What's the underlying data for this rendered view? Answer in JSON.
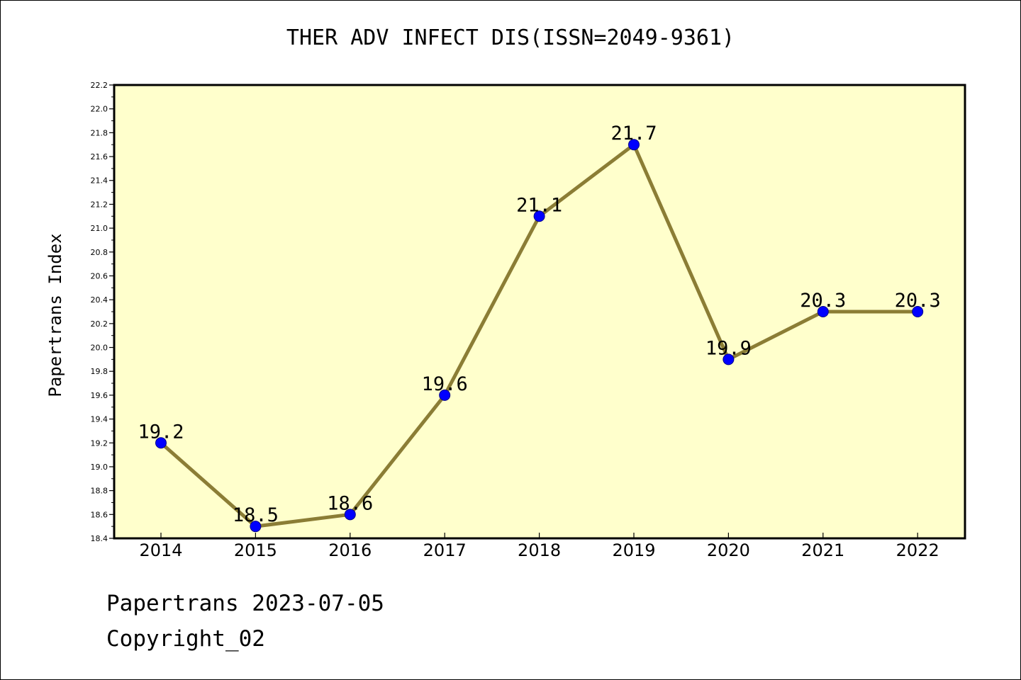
{
  "title": "THER ADV INFECT DIS(ISSN=2049-9361)",
  "footer": {
    "date_line": "Papertrans 2023-07-05",
    "copyright_line": "Copyright_02"
  },
  "chart_data": {
    "type": "line",
    "title": "THER ADV INFECT DIS(ISSN=2049-9361)",
    "xlabel": "",
    "ylabel": "Papertrans Index",
    "categories": [
      "2014",
      "2015",
      "2016",
      "2017",
      "2018",
      "2019",
      "2020",
      "2021",
      "2022"
    ],
    "series": [
      {
        "values": [
          19.2,
          18.5,
          18.6,
          19.6,
          21.1,
          21.7,
          19.9,
          20.3,
          20.3
        ],
        "data_labels": [
          "19.2",
          "18.5",
          "18.6",
          "19.6",
          "21.1",
          "21.7",
          "19.9",
          "20.3",
          "20.3"
        ]
      }
    ],
    "ylim": [
      18.4,
      22.2
    ],
    "yticks": [
      "18.4",
      "18.6",
      "18.8",
      "19.0",
      "19.2",
      "19.4",
      "19.6",
      "19.8",
      "20.0",
      "20.2",
      "20.4",
      "20.6",
      "20.8",
      "21.0",
      "21.2",
      "21.4",
      "21.6",
      "21.8",
      "22.0",
      "22.2"
    ],
    "grid": false,
    "colors": {
      "plot_background": "#ffffcc",
      "line": "#8b7d35",
      "marker": "#0000ff",
      "marker_edge": "#00008b"
    }
  }
}
